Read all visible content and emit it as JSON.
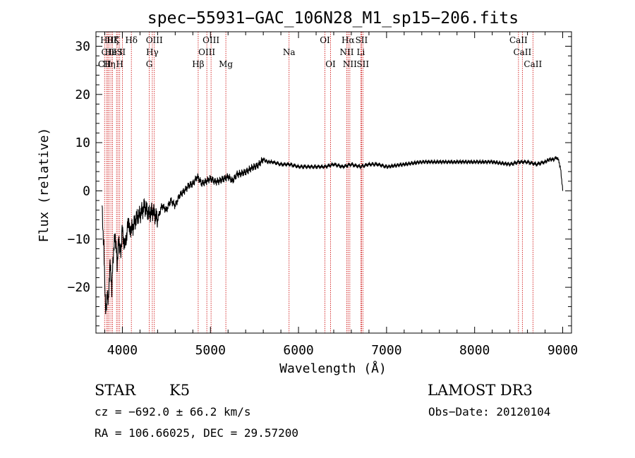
{
  "chart_data": {
    "type": "line",
    "title": "spec−55931−GAC_106N28_M1_sp15−206.fits",
    "xlabel": "Wavelength (Å)",
    "ylabel": "Flux (relative)",
    "xlim": [
      3700,
      9100
    ],
    "ylim": [
      -29.5,
      33
    ],
    "xticks": [
      4000,
      5000,
      6000,
      7000,
      8000,
      9000
    ],
    "xtick_labels": [
      "4000",
      "5000",
      "6000",
      "7000",
      "8000",
      "9000"
    ],
    "yticks": [
      -20,
      -10,
      0,
      10,
      20,
      30
    ],
    "ytick_labels": [
      "−20",
      "−10",
      "0",
      "10",
      "20",
      "30"
    ],
    "color": "#000000",
    "line_marker_color": "#cc0000",
    "spectrum": {
      "x": [
        3770,
        3790,
        3800,
        3810,
        3820,
        3830,
        3840,
        3850,
        3860,
        3870,
        3880,
        3900,
        3920,
        3940,
        3960,
        3980,
        4000,
        4030,
        4060,
        4100,
        4150,
        4200,
        4250,
        4300,
        4350,
        4400,
        4450,
        4500,
        4550,
        4600,
        4650,
        4700,
        4750,
        4800,
        4850,
        4900,
        4950,
        5000,
        5050,
        5100,
        5150,
        5200,
        5250,
        5300,
        5350,
        5400,
        5450,
        5500,
        5550,
        5600,
        5650,
        5700,
        5800,
        5900,
        6000,
        6100,
        6200,
        6300,
        6400,
        6500,
        6600,
        6700,
        6800,
        6900,
        7000,
        7200,
        7400,
        7600,
        7800,
        8000,
        8200,
        8400,
        8500,
        8600,
        8700,
        8800,
        8850,
        8900,
        8930,
        8960,
        8980,
        9000
      ],
      "y": [
        -4,
        -12,
        -20,
        -25,
        -24,
        -21,
        -23,
        -19,
        -14,
        -17,
        -20,
        -12,
        -9,
        -15,
        -10,
        -13,
        -8,
        -12,
        -7,
        -8,
        -6,
        -5,
        -3,
        -5,
        -4,
        -6,
        -3,
        -4,
        -2,
        -3,
        -1,
        0,
        1,
        1.5,
        3,
        1.5,
        2,
        2.5,
        2,
        2,
        2.5,
        3,
        2,
        3.5,
        3.5,
        4,
        4.5,
        5,
        5.5,
        6.5,
        6,
        6,
        5.5,
        5.5,
        5,
        5,
        5,
        5,
        5.5,
        5,
        5.5,
        5,
        5.5,
        5.5,
        5,
        5.5,
        6,
        6,
        6,
        6,
        6,
        5.5,
        6,
        6,
        5.5,
        6,
        6.5,
        6.5,
        7,
        6,
        4,
        0
      ]
    },
    "lines": [
      {
        "wl": 3798,
        "label": "CII",
        "row": 3
      },
      {
        "wl": 3820,
        "label": "Hθ",
        "row": 1
      },
      {
        "wl": 3835,
        "label": "CII",
        "row": 2
      },
      {
        "wl": 3850,
        "label": "Hη",
        "row": 3
      },
      {
        "wl": 3870,
        "label": "He",
        "row": 2
      },
      {
        "wl": 3889,
        "label": "Hζ",
        "row": 1
      },
      {
        "wl": 3934,
        "label": "K",
        "row": 1
      },
      {
        "wl": 3950,
        "label": "IS",
        "row": 2
      },
      {
        "wl": 3970,
        "label": "H",
        "row": 3
      },
      {
        "wl": 4000,
        "label": "II",
        "row": 2
      },
      {
        "wl": 4102,
        "label": "Hδ",
        "row": 1
      },
      {
        "wl": 4305,
        "label": "G",
        "row": 3
      },
      {
        "wl": 4340,
        "label": "Hγ",
        "row": 2
      },
      {
        "wl": 4363,
        "label": "OIII",
        "row": 1
      },
      {
        "wl": 4861,
        "label": "Hβ",
        "row": 3
      },
      {
        "wl": 4959,
        "label": "OIII",
        "row": 2
      },
      {
        "wl": 5007,
        "label": "OIII",
        "row": 1
      },
      {
        "wl": 5175,
        "label": "Mg",
        "row": 3
      },
      {
        "wl": 5893,
        "label": "Na",
        "row": 2
      },
      {
        "wl": 6300,
        "label": "OI",
        "row": 1
      },
      {
        "wl": 6364,
        "label": "OI",
        "row": 3
      },
      {
        "wl": 6548,
        "label": "NII",
        "row": 2
      },
      {
        "wl": 6563,
        "label": "Hα",
        "row": 1
      },
      {
        "wl": 6583,
        "label": "NII",
        "row": 3
      },
      {
        "wl": 6708,
        "label": "Li",
        "row": 2
      },
      {
        "wl": 6716,
        "label": "SII",
        "row": 1
      },
      {
        "wl": 6731,
        "label": "SII",
        "row": 3
      },
      {
        "wl": 8498,
        "label": "CaII",
        "row": 1
      },
      {
        "wl": 8542,
        "label": "CaII",
        "row": 2
      },
      {
        "wl": 8662,
        "label": "CaII",
        "row": 3
      }
    ]
  },
  "info": {
    "class": "STAR",
    "subclass": "K5",
    "survey": "LAMOST DR3",
    "cz": "cz = −692.0 ± 66.2 km/s",
    "obs_date": "Obs−Date: 20120104",
    "coords": "RA = 106.66025, DEC =  29.57200"
  }
}
